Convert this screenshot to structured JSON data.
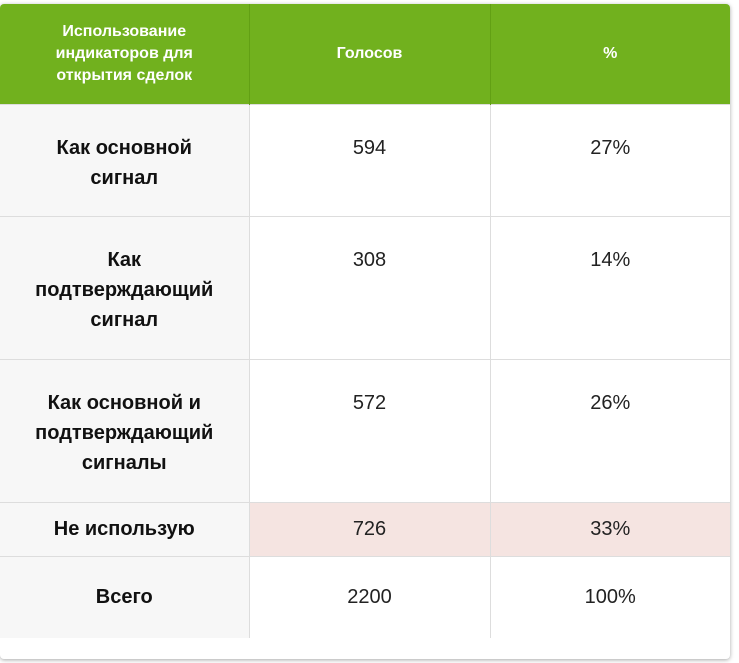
{
  "table": {
    "headers": [
      "Использование индикаторов для открытия сделок",
      "Голосов",
      "%"
    ],
    "rows": [
      {
        "label": "Как основной сигнал",
        "votes": "594",
        "percent": "27%"
      },
      {
        "label": "Как подтверждающий сигнал",
        "votes": "308",
        "percent": "14%"
      },
      {
        "label": "Как основной и подтверждающий сигналы",
        "votes": "572",
        "percent": "26%"
      },
      {
        "label": "Не использую",
        "votes": "726",
        "percent": "33%"
      },
      {
        "label": "Всего",
        "votes": "2200",
        "percent": "100%"
      }
    ]
  },
  "colors": {
    "header_bg": "#71b11e",
    "highlight_bg": "#f5e4e1",
    "rowhead_bg": "#f7f7f7"
  }
}
